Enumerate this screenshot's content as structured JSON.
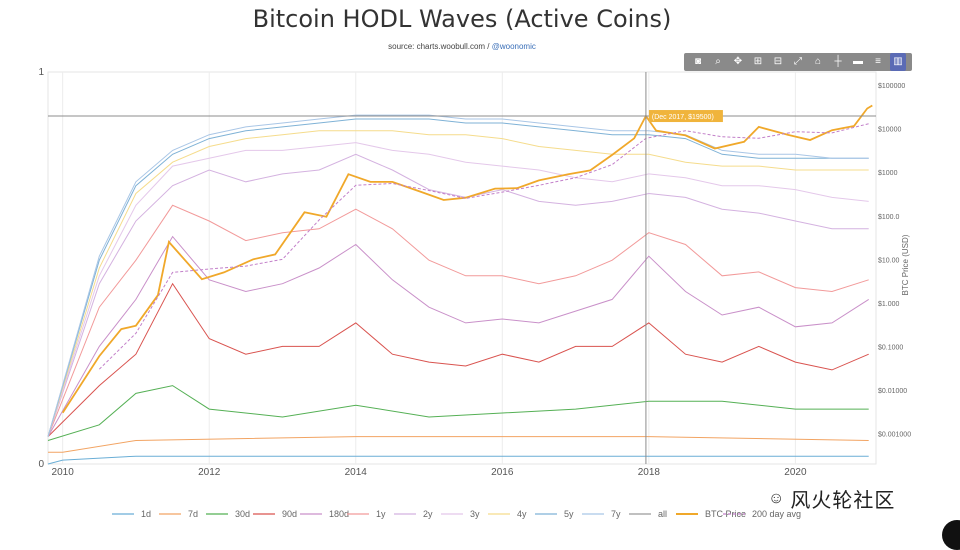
{
  "chart_data": {
    "type": "line",
    "title": "Bitcoin HODL Waves (Active Coins)",
    "source_prefix": "source: charts.woobull.com / ",
    "source_handle": "@woonomic",
    "x_ticks": [
      "2010",
      "2012",
      "2014",
      "2016",
      "2018",
      "2020"
    ],
    "x_tick_years": [
      2010,
      2012,
      2014,
      2016,
      2018,
      2020
    ],
    "x_range": [
      2009.8,
      2021.1
    ],
    "left_axis": {
      "ticks": [
        "1",
        "0"
      ],
      "range": [
        0,
        1
      ]
    },
    "right_axis": {
      "label": "BTC Price (USD)",
      "scale": "log",
      "range": [
        0.0002,
        200000
      ],
      "ticks": [
        "$100000",
        "$10000",
        "$1000",
        "$100.0",
        "$10.00",
        "$1.000",
        "$0.1000",
        "$0.01000",
        "$0.001000"
      ],
      "tick_values": [
        100000,
        10000,
        1000,
        100,
        10,
        1,
        0.1,
        0.01,
        0.001
      ]
    },
    "hover": {
      "year": 2017.96,
      "price": 19500,
      "label": "(Dec 2017, $19500)"
    },
    "series": [
      {
        "name": "1d",
        "color": "#6aaed6",
        "points": [
          [
            2009.8,
            0.0
          ],
          [
            2010.0,
            0.01
          ],
          [
            2011.0,
            0.02
          ],
          [
            2015.0,
            0.02
          ],
          [
            2021.0,
            0.02
          ]
        ]
      },
      {
        "name": "7d",
        "color": "#f2a463",
        "points": [
          [
            2009.8,
            0.03
          ],
          [
            2010.0,
            0.03
          ],
          [
            2011.0,
            0.06
          ],
          [
            2014.0,
            0.07
          ],
          [
            2018.0,
            0.07
          ],
          [
            2021.0,
            0.06
          ]
        ]
      },
      {
        "name": "30d",
        "color": "#55b055",
        "points": [
          [
            2009.8,
            0.06
          ],
          [
            2010.5,
            0.1
          ],
          [
            2011.0,
            0.18
          ],
          [
            2011.5,
            0.2
          ],
          [
            2012.0,
            0.14
          ],
          [
            2013.0,
            0.12
          ],
          [
            2014.0,
            0.15
          ],
          [
            2015.0,
            0.12
          ],
          [
            2016.0,
            0.13
          ],
          [
            2017.0,
            0.14
          ],
          [
            2018.0,
            0.16
          ],
          [
            2019.0,
            0.16
          ],
          [
            2020.0,
            0.14
          ],
          [
            2021.0,
            0.14
          ]
        ]
      },
      {
        "name": "90d",
        "color": "#d9534f",
        "points": [
          [
            2009.8,
            0.07
          ],
          [
            2010.5,
            0.2
          ],
          [
            2011.0,
            0.28
          ],
          [
            2011.5,
            0.46
          ],
          [
            2012.0,
            0.32
          ],
          [
            2012.5,
            0.28
          ],
          [
            2013.0,
            0.3
          ],
          [
            2013.5,
            0.3
          ],
          [
            2014.0,
            0.36
          ],
          [
            2014.5,
            0.28
          ],
          [
            2015.0,
            0.26
          ],
          [
            2015.5,
            0.25
          ],
          [
            2016.0,
            0.28
          ],
          [
            2016.5,
            0.26
          ],
          [
            2017.0,
            0.3
          ],
          [
            2017.5,
            0.3
          ],
          [
            2018.0,
            0.36
          ],
          [
            2018.5,
            0.28
          ],
          [
            2019.0,
            0.26
          ],
          [
            2019.5,
            0.3
          ],
          [
            2020.0,
            0.26
          ],
          [
            2020.5,
            0.24
          ],
          [
            2021.0,
            0.28
          ]
        ]
      },
      {
        "name": "180d",
        "color": "#c990c9",
        "points": [
          [
            2009.8,
            0.07
          ],
          [
            2010.5,
            0.3
          ],
          [
            2011.0,
            0.42
          ],
          [
            2011.5,
            0.58
          ],
          [
            2012.0,
            0.47
          ],
          [
            2012.5,
            0.44
          ],
          [
            2013.0,
            0.46
          ],
          [
            2013.5,
            0.5
          ],
          [
            2014.0,
            0.56
          ],
          [
            2014.5,
            0.47
          ],
          [
            2015.0,
            0.4
          ],
          [
            2015.5,
            0.36
          ],
          [
            2016.0,
            0.37
          ],
          [
            2016.5,
            0.36
          ],
          [
            2017.0,
            0.39
          ],
          [
            2017.5,
            0.42
          ],
          [
            2018.0,
            0.53
          ],
          [
            2018.5,
            0.44
          ],
          [
            2019.0,
            0.38
          ],
          [
            2019.5,
            0.4
          ],
          [
            2020.0,
            0.35
          ],
          [
            2020.5,
            0.36
          ],
          [
            2021.0,
            0.42
          ]
        ]
      },
      {
        "name": "1y",
        "color": "#f29a9a",
        "points": [
          [
            2009.8,
            0.07
          ],
          [
            2010.5,
            0.4
          ],
          [
            2011.0,
            0.52
          ],
          [
            2011.5,
            0.66
          ],
          [
            2012.0,
            0.62
          ],
          [
            2012.5,
            0.57
          ],
          [
            2013.0,
            0.59
          ],
          [
            2013.5,
            0.6
          ],
          [
            2014.0,
            0.65
          ],
          [
            2014.5,
            0.6
          ],
          [
            2015.0,
            0.52
          ],
          [
            2015.5,
            0.48
          ],
          [
            2016.0,
            0.48
          ],
          [
            2016.5,
            0.46
          ],
          [
            2017.0,
            0.48
          ],
          [
            2017.5,
            0.52
          ],
          [
            2018.0,
            0.59
          ],
          [
            2018.5,
            0.56
          ],
          [
            2019.0,
            0.48
          ],
          [
            2019.5,
            0.49
          ],
          [
            2020.0,
            0.45
          ],
          [
            2020.5,
            0.44
          ],
          [
            2021.0,
            0.47
          ]
        ]
      },
      {
        "name": "2y",
        "color": "#d4b2e0",
        "points": [
          [
            2009.8,
            0.07
          ],
          [
            2010.5,
            0.46
          ],
          [
            2011.0,
            0.62
          ],
          [
            2011.5,
            0.71
          ],
          [
            2012.0,
            0.75
          ],
          [
            2012.5,
            0.72
          ],
          [
            2013.0,
            0.74
          ],
          [
            2013.5,
            0.75
          ],
          [
            2014.0,
            0.79
          ],
          [
            2014.5,
            0.75
          ],
          [
            2015.0,
            0.7
          ],
          [
            2015.5,
            0.68
          ],
          [
            2016.0,
            0.7
          ],
          [
            2016.5,
            0.67
          ],
          [
            2017.0,
            0.66
          ],
          [
            2017.5,
            0.67
          ],
          [
            2018.0,
            0.69
          ],
          [
            2018.5,
            0.68
          ],
          [
            2019.0,
            0.65
          ],
          [
            2019.5,
            0.64
          ],
          [
            2020.0,
            0.62
          ],
          [
            2020.5,
            0.6
          ],
          [
            2021.0,
            0.6
          ]
        ]
      },
      {
        "name": "3y",
        "color": "#e4c8ea",
        "points": [
          [
            2009.8,
            0.07
          ],
          [
            2010.5,
            0.48
          ],
          [
            2011.0,
            0.66
          ],
          [
            2011.5,
            0.76
          ],
          [
            2012.0,
            0.78
          ],
          [
            2012.5,
            0.8
          ],
          [
            2013.0,
            0.8
          ],
          [
            2013.5,
            0.81
          ],
          [
            2014.0,
            0.82
          ],
          [
            2014.5,
            0.8
          ],
          [
            2015.0,
            0.79
          ],
          [
            2015.5,
            0.77
          ],
          [
            2016.0,
            0.76
          ],
          [
            2016.5,
            0.75
          ],
          [
            2017.0,
            0.73
          ],
          [
            2017.5,
            0.72
          ],
          [
            2018.0,
            0.74
          ],
          [
            2018.5,
            0.73
          ],
          [
            2019.0,
            0.71
          ],
          [
            2019.5,
            0.71
          ],
          [
            2020.0,
            0.7
          ],
          [
            2020.5,
            0.68
          ],
          [
            2021.0,
            0.67
          ]
        ]
      },
      {
        "name": "4y",
        "color": "#f5dc8c",
        "points": [
          [
            2009.8,
            0.07
          ],
          [
            2010.5,
            0.5
          ],
          [
            2011.0,
            0.69
          ],
          [
            2011.5,
            0.77
          ],
          [
            2012.0,
            0.81
          ],
          [
            2012.5,
            0.83
          ],
          [
            2013.0,
            0.84
          ],
          [
            2013.5,
            0.85
          ],
          [
            2014.0,
            0.85
          ],
          [
            2014.5,
            0.85
          ],
          [
            2015.0,
            0.84
          ],
          [
            2015.5,
            0.84
          ],
          [
            2016.0,
            0.83
          ],
          [
            2016.5,
            0.81
          ],
          [
            2017.0,
            0.8
          ],
          [
            2017.5,
            0.79
          ],
          [
            2018.0,
            0.79
          ],
          [
            2018.5,
            0.77
          ],
          [
            2019.0,
            0.76
          ],
          [
            2019.5,
            0.76
          ],
          [
            2020.0,
            0.75
          ],
          [
            2020.5,
            0.75
          ],
          [
            2021.0,
            0.75
          ]
        ]
      },
      {
        "name": "5y",
        "color": "#7fb2d6",
        "points": [
          [
            2009.8,
            0.07
          ],
          [
            2010.5,
            0.52
          ],
          [
            2011.0,
            0.71
          ],
          [
            2011.5,
            0.79
          ],
          [
            2012.0,
            0.83
          ],
          [
            2012.5,
            0.85
          ],
          [
            2013.0,
            0.86
          ],
          [
            2013.5,
            0.87
          ],
          [
            2014.0,
            0.88
          ],
          [
            2014.5,
            0.88
          ],
          [
            2015.0,
            0.88
          ],
          [
            2015.5,
            0.87
          ],
          [
            2016.0,
            0.87
          ],
          [
            2016.5,
            0.86
          ],
          [
            2017.0,
            0.85
          ],
          [
            2017.5,
            0.84
          ],
          [
            2018.0,
            0.84
          ],
          [
            2018.5,
            0.83
          ],
          [
            2019.0,
            0.79
          ],
          [
            2019.5,
            0.78
          ],
          [
            2020.0,
            0.78
          ],
          [
            2020.5,
            0.78
          ],
          [
            2021.0,
            0.78
          ]
        ]
      },
      {
        "name": "7y",
        "color": "#a9c6e6",
        "points": [
          [
            2009.8,
            0.07
          ],
          [
            2010.5,
            0.53
          ],
          [
            2011.0,
            0.72
          ],
          [
            2011.5,
            0.8
          ],
          [
            2012.0,
            0.84
          ],
          [
            2012.5,
            0.86
          ],
          [
            2013.0,
            0.87
          ],
          [
            2013.5,
            0.88
          ],
          [
            2014.0,
            0.89
          ],
          [
            2014.5,
            0.89
          ],
          [
            2015.0,
            0.89
          ],
          [
            2015.5,
            0.88
          ],
          [
            2016.0,
            0.88
          ],
          [
            2016.5,
            0.87
          ],
          [
            2017.0,
            0.86
          ],
          [
            2017.5,
            0.85
          ],
          [
            2018.0,
            0.85
          ],
          [
            2018.5,
            0.84
          ],
          [
            2019.0,
            0.8
          ],
          [
            2019.5,
            0.79
          ],
          [
            2020.0,
            0.79
          ],
          [
            2020.5,
            0.78
          ],
          [
            2021.0,
            0.78
          ]
        ]
      },
      {
        "name": "all",
        "color": "#9a9a9a",
        "points": []
      },
      {
        "name": "BTC Price",
        "color": "#f0a82a",
        "axis": "right",
        "points": [
          [
            2010.0,
            0.003
          ],
          [
            2010.5,
            0.06
          ],
          [
            2010.8,
            0.25
          ],
          [
            2011.0,
            0.3
          ],
          [
            2011.3,
            1.5
          ],
          [
            2011.45,
            25
          ],
          [
            2011.6,
            13
          ],
          [
            2011.9,
            3.5
          ],
          [
            2012.2,
            5
          ],
          [
            2012.6,
            10
          ],
          [
            2012.9,
            13
          ],
          [
            2013.3,
            120
          ],
          [
            2013.6,
            95
          ],
          [
            2013.9,
            900
          ],
          [
            2014.2,
            600
          ],
          [
            2014.5,
            600
          ],
          [
            2014.9,
            350
          ],
          [
            2015.2,
            230
          ],
          [
            2015.5,
            260
          ],
          [
            2015.9,
            420
          ],
          [
            2016.2,
            430
          ],
          [
            2016.5,
            650
          ],
          [
            2016.9,
            900
          ],
          [
            2017.2,
            1100
          ],
          [
            2017.5,
            2500
          ],
          [
            2017.8,
            6000
          ],
          [
            2017.96,
            19500
          ],
          [
            2018.1,
            9000
          ],
          [
            2018.5,
            7000
          ],
          [
            2018.9,
            3500
          ],
          [
            2019.3,
            5000
          ],
          [
            2019.5,
            11000
          ],
          [
            2019.9,
            7200
          ],
          [
            2020.2,
            5500
          ],
          [
            2020.5,
            9200
          ],
          [
            2020.8,
            11500
          ],
          [
            2020.98,
            29000
          ],
          [
            2021.05,
            34000
          ]
        ]
      },
      {
        "name": "200 day avg",
        "color": "#c27fc9",
        "dashed": true,
        "axis": "right",
        "points": [
          [
            2010.5,
            0.03
          ],
          [
            2011.0,
            0.2
          ],
          [
            2011.5,
            5
          ],
          [
            2012.0,
            6
          ],
          [
            2012.5,
            7
          ],
          [
            2013.0,
            10
          ],
          [
            2013.5,
            80
          ],
          [
            2014.0,
            500
          ],
          [
            2014.5,
            550
          ],
          [
            2015.0,
            380
          ],
          [
            2015.5,
            250
          ],
          [
            2016.0,
            350
          ],
          [
            2016.5,
            500
          ],
          [
            2017.0,
            750
          ],
          [
            2017.5,
            1500
          ],
          [
            2017.96,
            6000
          ],
          [
            2018.5,
            9000
          ],
          [
            2019.0,
            6500
          ],
          [
            2019.5,
            6000
          ],
          [
            2020.0,
            8500
          ],
          [
            2020.5,
            8000
          ],
          [
            2021.0,
            13000
          ]
        ]
      }
    ]
  },
  "modebar": {
    "icons": [
      "camera-icon",
      "zoom-icon",
      "pan-icon",
      "zoom-in-icon",
      "zoom-out-icon",
      "autoscale-icon",
      "reset-axes-icon",
      "spike-lines-icon",
      "hover-closest-icon",
      "hover-compare-icon",
      "plotly-logo-icon"
    ]
  },
  "watermark": {
    "text": "风火轮社区"
  }
}
